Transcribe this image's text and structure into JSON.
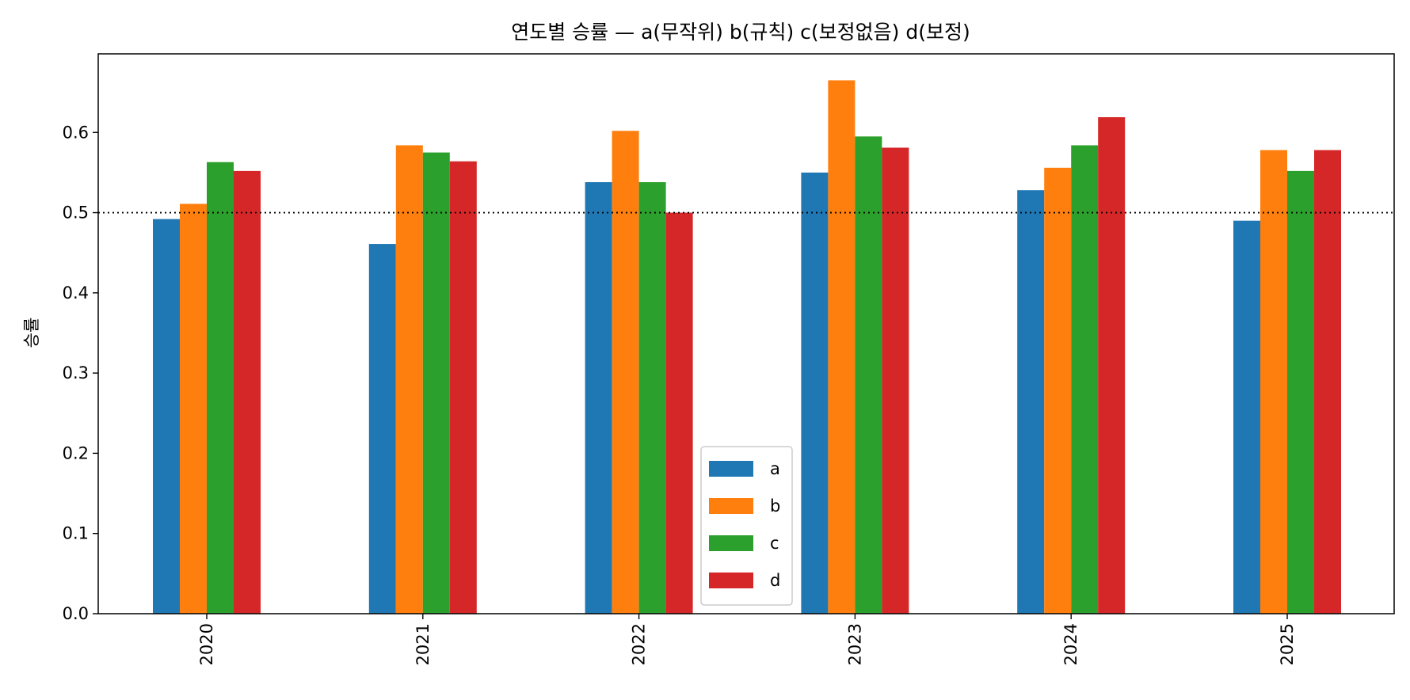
{
  "chart_data": {
    "type": "bar",
    "title": "연도별 승률 — a(무작위) b(규칙) c(보정없음) d(보정)",
    "xlabel": "",
    "ylabel": "승률",
    "categories": [
      "2020",
      "2021",
      "2022",
      "2023",
      "2024",
      "2025"
    ],
    "series": [
      {
        "name": "a",
        "color": "#1f77b4",
        "values": [
          0.492,
          0.461,
          0.538,
          0.55,
          0.528,
          0.49
        ]
      },
      {
        "name": "b",
        "color": "#ff7f0e",
        "values": [
          0.511,
          0.584,
          0.602,
          0.665,
          0.556,
          0.578
        ]
      },
      {
        "name": "c",
        "color": "#2ca02c",
        "values": [
          0.563,
          0.575,
          0.538,
          0.595,
          0.584,
          0.552
        ]
      },
      {
        "name": "d",
        "color": "#d62728",
        "values": [
          0.552,
          0.564,
          0.5,
          0.581,
          0.619,
          0.578
        ]
      }
    ],
    "ylim": [
      0,
      0.698
    ],
    "yticks": [
      "0.0",
      "0.1",
      "0.2",
      "0.3",
      "0.4",
      "0.5",
      "0.6"
    ],
    "reference_line": {
      "value": 0.5,
      "style": "dotted"
    },
    "grid": false,
    "legend_position": "lower center"
  }
}
